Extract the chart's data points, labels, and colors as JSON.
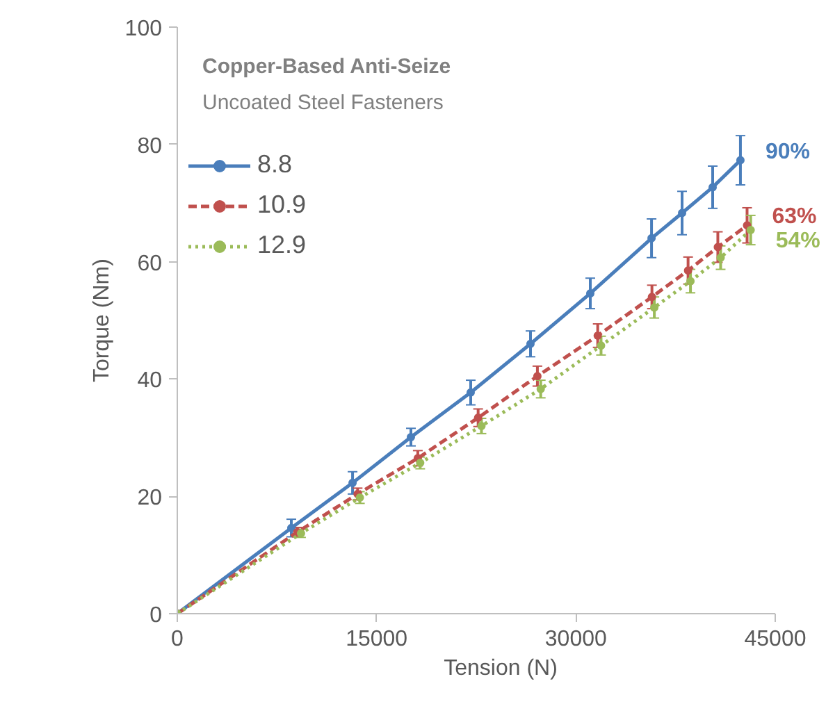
{
  "chart_data": {
    "type": "line",
    "title": "Copper-Based Anti-Seize",
    "subtitle": "Uncoated Steel Fasteners",
    "xlabel": "Tension (N)",
    "ylabel": "Torque (Nm)",
    "xlim": [
      0,
      45000
    ],
    "xticks": [
      0,
      15000,
      30000,
      45000
    ],
    "ylim": [
      0,
      100
    ],
    "yticks": [
      0,
      20,
      40,
      60,
      80,
      100
    ],
    "grid": false,
    "legend": "top left",
    "marker": "circle",
    "series": [
      {
        "name": "8.8",
        "color": "#4a7ebb",
        "line_style": "solid",
        "x": [
          0,
          8580,
          13190,
          17580,
          22080,
          26580,
          31080,
          35690,
          37990,
          40290,
          42380
        ],
        "values": [
          0,
          14.6,
          22.3,
          30.1,
          37.7,
          46.0,
          54.6,
          64.0,
          68.3,
          72.7,
          77.3
        ],
        "errors": [
          null,
          1.5,
          1.9,
          1.5,
          2.1,
          2.2,
          2.6,
          3.3,
          3.7,
          3.6,
          4.2
        ]
      },
      {
        "name": "10.9",
        "color": "#c0504d",
        "line_style": "dashed",
        "x": [
          0,
          9030,
          13570,
          18100,
          22640,
          27100,
          31640,
          35720,
          38440,
          40680,
          42880
        ],
        "values": [
          0,
          13.9,
          20.4,
          26.5,
          33.4,
          40.5,
          47.4,
          54.0,
          58.5,
          62.5,
          66.2
        ],
        "errors": [
          null,
          0.8,
          1.0,
          1.3,
          1.5,
          1.7,
          2.0,
          2.0,
          2.3,
          2.6,
          3.0
        ]
      },
      {
        "name": "12.9",
        "color": "#9bbb59",
        "line_style": "dotted",
        "x": [
          0,
          9310,
          13740,
          18280,
          22890,
          27350,
          31890,
          35900,
          38620,
          40890,
          43150
        ],
        "values": [
          0,
          13.7,
          19.8,
          25.7,
          32.0,
          38.3,
          45.7,
          52.2,
          56.7,
          60.7,
          65.4
        ],
        "errors": [
          null,
          0.7,
          1.0,
          1.0,
          1.3,
          1.5,
          1.6,
          1.8,
          2.0,
          2.0,
          2.5
        ]
      }
    ],
    "annotations": [
      {
        "text": "90%",
        "x": 42380,
        "y": 77.3
      },
      {
        "text": "63%",
        "x": 42880,
        "y": 66.2
      },
      {
        "text": "54%",
        "x": 43150,
        "y": 65.4
      }
    ]
  }
}
